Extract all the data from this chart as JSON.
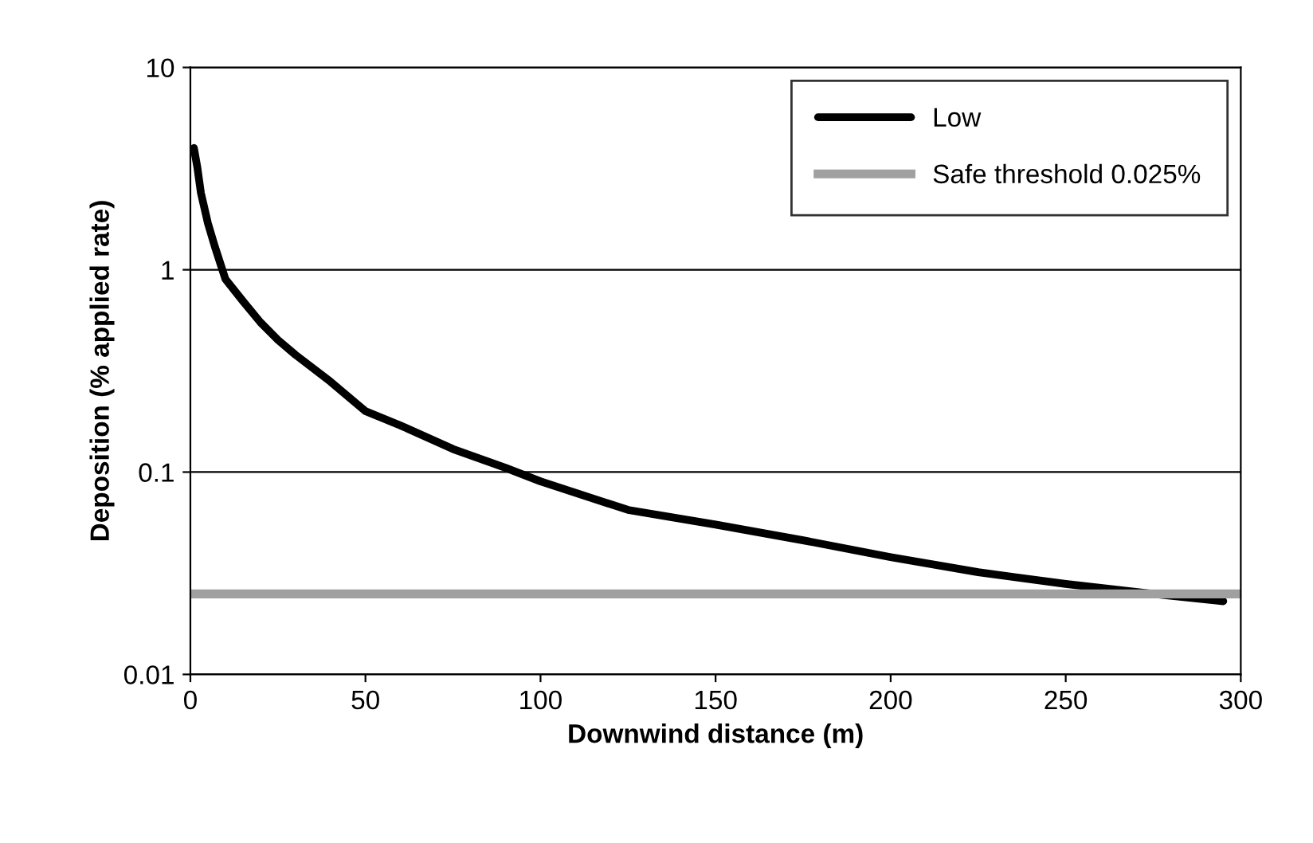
{
  "chart_data": {
    "type": "line",
    "xlabel": "Downwind distance (m)",
    "ylabel": "Deposition (% applied rate)",
    "series": [
      {
        "name": "Low",
        "color": "#000000",
        "x": [
          1,
          2,
          3,
          5,
          7,
          10,
          15,
          20,
          25,
          30,
          40,
          50,
          60,
          75,
          90,
          100,
          125,
          150,
          175,
          200,
          225,
          250,
          275,
          295
        ],
        "values": [
          4.0,
          3.2,
          2.4,
          1.7,
          1.3,
          0.9,
          0.7,
          0.55,
          0.45,
          0.38,
          0.28,
          0.2,
          0.17,
          0.13,
          0.105,
          0.09,
          0.065,
          0.055,
          0.046,
          0.038,
          0.032,
          0.028,
          0.025,
          0.023
        ]
      }
    ],
    "ref_lines": [
      {
        "axis": "y",
        "value": 0.025,
        "label": "Safe threshold 0.025%",
        "color": "#a0a0a0"
      }
    ],
    "log": true,
    "xlim": [
      0,
      300
    ],
    "xticks": [
      0,
      50,
      100,
      150,
      200,
      250,
      300
    ],
    "ylim": [
      0.01,
      10
    ],
    "yticks": [
      0.01,
      0.1,
      1,
      10
    ],
    "grid": "y",
    "legend": "top right",
    "marker": "none",
    "line_style": "solid"
  }
}
